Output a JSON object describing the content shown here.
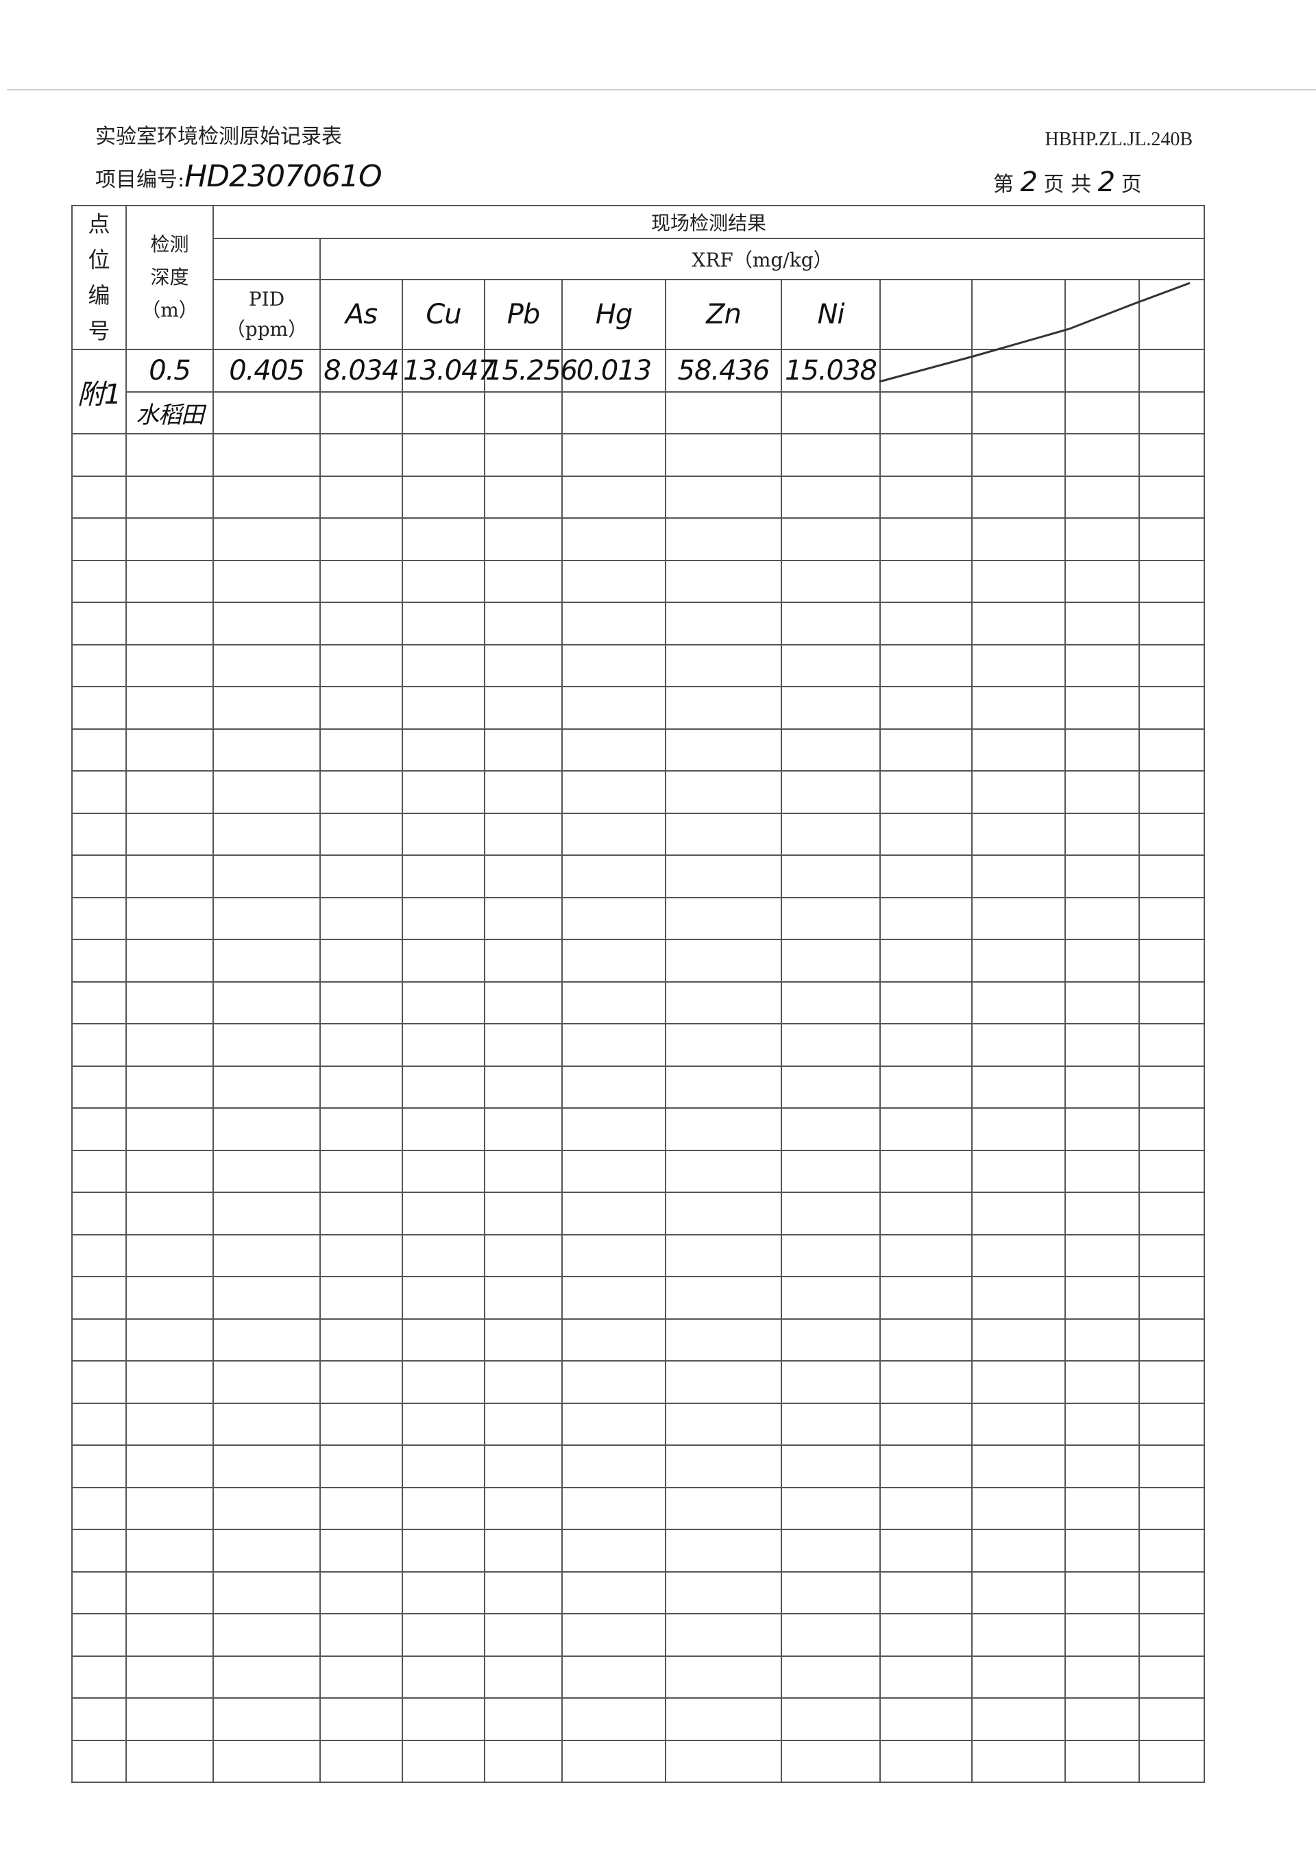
{
  "header": {
    "title": "实验室环境检测原始记录表",
    "project_label": "项目编号:",
    "project_no": "HD2307061O",
    "form_code": "HBHP.ZL.JL.240B",
    "page_prefix": "第",
    "page_current": "2",
    "page_mid": "页 共",
    "page_total": "2",
    "page_suffix": "页"
  },
  "table": {
    "col_point": "点位编号",
    "col_point_chars": [
      "点",
      "位",
      "编",
      "号"
    ],
    "col_depth_l1": "检测",
    "col_depth_l2": "深度",
    "col_depth_l3": "（m）",
    "group_label": "现场检测结果",
    "xrf_label": "XRF（mg/kg）",
    "pid_l1": "PID",
    "pid_l2": "（ppm）",
    "elements": [
      "As",
      "Cu",
      "Pb",
      "Hg",
      "Zn",
      "Ni"
    ],
    "record": {
      "point": "附1",
      "depth": "0.5",
      "note": "水稻田",
      "pid": "0.405",
      "values": [
        "8.034",
        "13.047",
        "15.256",
        "0.013",
        "58.436",
        "15.038"
      ]
    }
  }
}
